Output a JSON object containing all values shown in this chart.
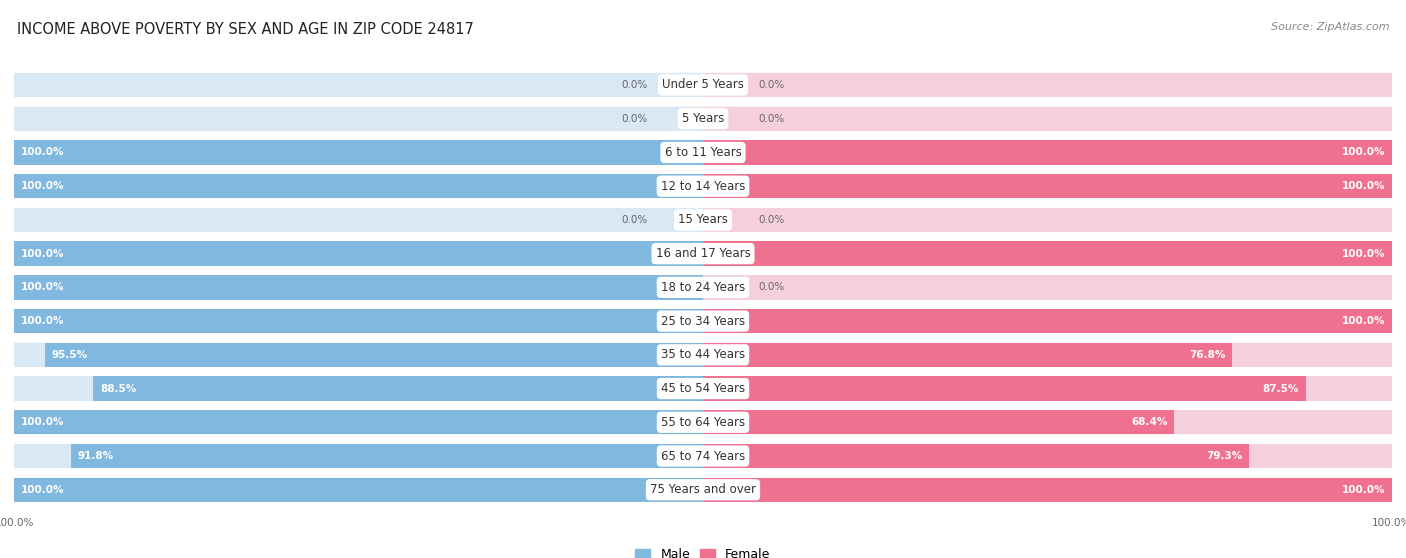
{
  "title": "INCOME ABOVE POVERTY BY SEX AND AGE IN ZIP CODE 24817",
  "source": "Source: ZipAtlas.com",
  "categories": [
    "Under 5 Years",
    "5 Years",
    "6 to 11 Years",
    "12 to 14 Years",
    "15 Years",
    "16 and 17 Years",
    "18 to 24 Years",
    "25 to 34 Years",
    "35 to 44 Years",
    "45 to 54 Years",
    "55 to 64 Years",
    "65 to 74 Years",
    "75 Years and over"
  ],
  "male_values": [
    0.0,
    0.0,
    100.0,
    100.0,
    0.0,
    100.0,
    100.0,
    100.0,
    95.5,
    88.5,
    100.0,
    91.8,
    100.0
  ],
  "female_values": [
    0.0,
    0.0,
    100.0,
    100.0,
    0.0,
    100.0,
    0.0,
    100.0,
    76.8,
    87.5,
    68.4,
    79.3,
    100.0
  ],
  "male_color": "#80B8E0",
  "female_color": "#F07090",
  "male_bg_color": "#D8E8F5",
  "female_bg_color": "#F5D0DC",
  "bg_color": "#F0F0F0",
  "row_bg_color": "#EBEBEB",
  "white": "#FFFFFF",
  "title_fontsize": 10.5,
  "source_fontsize": 8,
  "label_fontsize": 8.5,
  "value_fontsize": 7.5,
  "legend_fontsize": 9,
  "max_value": 100.0
}
